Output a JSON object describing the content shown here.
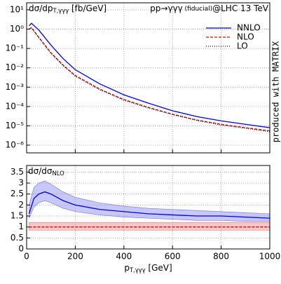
{
  "chart_data": [
    {
      "type": "line",
      "log_y": true,
      "grid": true,
      "legend": "upper right",
      "title": "dσ/dp",
      "title_sub": "T,γγγ",
      "title_unit": " [fb/GeV]",
      "process": "pp→γγγ",
      "process_note": " (fiducial)",
      "collider": "@LHC 13 TeV",
      "side_note": "produced with MATRIX",
      "x": [
        10,
        20,
        50,
        100,
        150,
        200,
        300,
        400,
        500,
        600,
        700,
        800,
        900,
        1000
      ],
      "series": [
        {
          "name": "NNLO",
          "color": "#0000e0",
          "dash": "solid",
          "values": [
            1.5,
            2.0,
            0.9,
            0.15,
            0.03,
            0.008,
            0.0015,
            0.0004,
            0.00015,
            6e-05,
            3e-05,
            1.8e-05,
            1.2e-05,
            8e-06
          ]
        },
        {
          "name": "NLO",
          "color": "#e00000",
          "dash": "dashed",
          "values": [
            1.0,
            1.2,
            0.38,
            0.06,
            0.014,
            0.004,
            0.0008,
            0.00023,
            9e-05,
            4e-05,
            2e-05,
            1.2e-05,
            8e-06,
            5.5e-06
          ]
        },
        {
          "name": "LO",
          "color": "#000000",
          "dash": "dotted",
          "values": [
            1.0,
            1.15,
            0.36,
            0.055,
            0.013,
            0.0037,
            0.00075,
            0.00021,
            8.5e-05,
            3.8e-05,
            1.9e-05,
            1.1e-05,
            7.5e-06,
            5e-06
          ]
        }
      ],
      "xlim": [
        0,
        1000
      ],
      "xticks": [
        0,
        200,
        400,
        600,
        800,
        1000
      ],
      "ylim": [
        4e-07,
        23
      ],
      "yticks": [
        {
          "value": 10,
          "label": "10¹"
        },
        {
          "value": 1,
          "label": "10⁰"
        },
        {
          "value": 0.1,
          "label": "10⁻¹"
        },
        {
          "value": 0.01,
          "label": "10⁻²"
        },
        {
          "value": 0.001,
          "label": "10⁻³"
        },
        {
          "value": 0.0001,
          "label": "10⁻⁴"
        },
        {
          "value": 1e-05,
          "label": "10⁻⁵"
        },
        {
          "value": 1e-06,
          "label": "10⁻⁶"
        }
      ]
    },
    {
      "type": "line",
      "log_y": false,
      "grid": true,
      "title": "dσ/dσ",
      "title_sub": "NLO",
      "xlabel": "p",
      "xlabel_sub": "T,γγγ",
      "xlabel_unit": " [GeV]",
      "x": [
        10,
        30,
        50,
        75,
        100,
        150,
        200,
        300,
        400,
        500,
        600,
        700,
        800,
        900,
        1000
      ],
      "series": [
        {
          "color": "#0000e0",
          "band_color": "#c8c8f8",
          "dash": "solid",
          "values": [
            1.6,
            2.3,
            2.5,
            2.6,
            2.5,
            2.2,
            2.0,
            1.8,
            1.7,
            1.6,
            1.55,
            1.5,
            1.5,
            1.45,
            1.4
          ],
          "low": [
            1.4,
            1.9,
            2.1,
            2.2,
            2.1,
            1.85,
            1.7,
            1.55,
            1.45,
            1.4,
            1.35,
            1.3,
            1.3,
            1.25,
            1.25
          ],
          "high": [
            2.0,
            2.8,
            3.0,
            3.1,
            2.95,
            2.6,
            2.35,
            2.1,
            1.95,
            1.85,
            1.8,
            1.75,
            1.7,
            1.65,
            1.6
          ]
        },
        {
          "color": "#e00000",
          "band_color": "#f8c8c8",
          "dash": "dashed",
          "values": [
            1,
            1,
            1,
            1,
            1,
            1,
            1,
            1,
            1,
            1,
            1,
            1,
            1,
            1,
            1
          ],
          "low": [
            0.85,
            0.85,
            0.85,
            0.85,
            0.85,
            0.85,
            0.85,
            0.85,
            0.85,
            0.85,
            0.85,
            0.85,
            0.85,
            0.85,
            0.85
          ],
          "high": [
            1.2,
            1.2,
            1.2,
            1.2,
            1.2,
            1.2,
            1.2,
            1.2,
            1.2,
            1.2,
            1.2,
            1.2,
            1.2,
            1.2,
            1.2
          ]
        }
      ],
      "xlim": [
        0,
        1000
      ],
      "xticks": [
        0,
        200,
        400,
        600,
        800,
        1000
      ],
      "ylim": [
        0,
        3.8
      ],
      "yticks": [
        0,
        0.5,
        1,
        1.5,
        2,
        2.5,
        3,
        3.5
      ]
    }
  ]
}
